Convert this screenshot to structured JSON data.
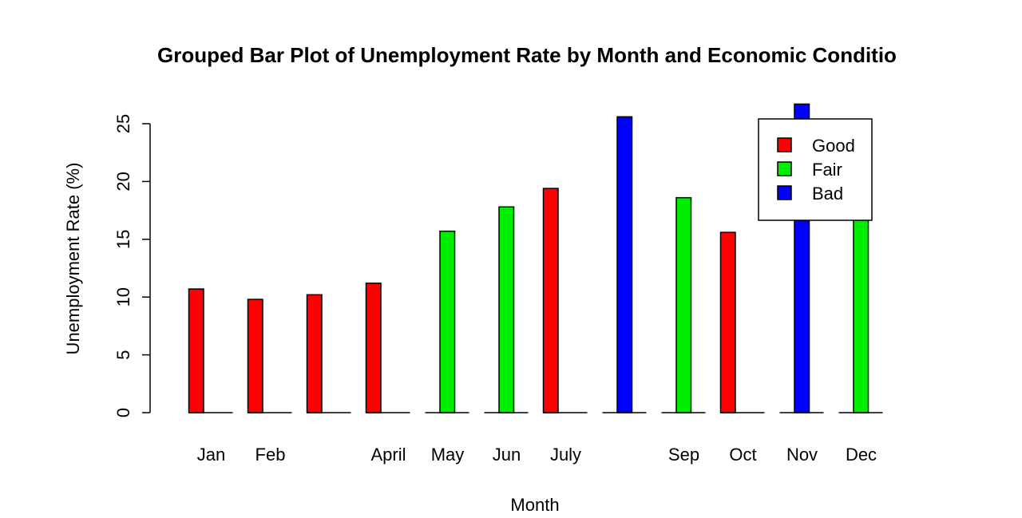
{
  "chart_data": {
    "type": "bar",
    "title": "Grouped Bar Plot of Unemployment Rate by Month and Economic Conditio",
    "xlabel": "Month",
    "ylabel": "Unemployment Rate (%)",
    "ylim": [
      0,
      25
    ],
    "yticks": [
      0,
      5,
      10,
      15,
      20,
      25
    ],
    "grid": false,
    "legend_position": "top-right",
    "conditions": [
      "Good",
      "Fair",
      "Bad"
    ],
    "colors": {
      "Good": "#ff0000",
      "Fair": "#00ee00",
      "Bad": "#0000ff"
    },
    "categories": [
      "Jan",
      "Feb",
      "",
      "April",
      "May",
      "Jun",
      "July",
      "",
      "Sep",
      "Oct",
      "Nov",
      "Dec"
    ],
    "bars": [
      {
        "condition": "Good",
        "value": 10.7
      },
      {
        "condition": "Good",
        "value": 9.8
      },
      {
        "condition": "Good",
        "value": 10.2
      },
      {
        "condition": "Good",
        "value": 11.2
      },
      {
        "condition": "Fair",
        "value": 15.7
      },
      {
        "condition": "Fair",
        "value": 17.8
      },
      {
        "condition": "Good",
        "value": 19.4
      },
      {
        "condition": "Bad",
        "value": 25.6
      },
      {
        "condition": "Fair",
        "value": 18.6
      },
      {
        "condition": "Good",
        "value": 15.6
      },
      {
        "condition": "Bad",
        "value": 26.7
      },
      {
        "condition": "Fair",
        "value": 17.2
      }
    ]
  }
}
